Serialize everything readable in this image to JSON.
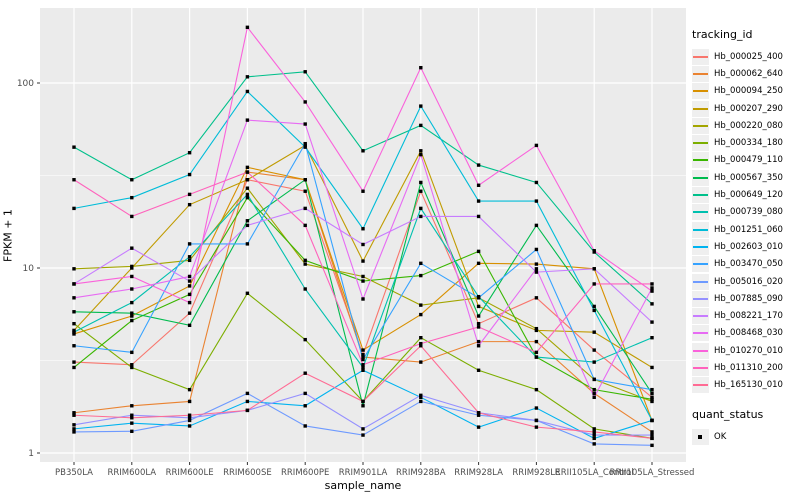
{
  "figure": {
    "background": "#FFFFFF",
    "panel_background": "#EBEBEB",
    "grid_major_color": "#FFFFFF",
    "grid_minor_color": "#F6F6F6",
    "axis_text_color": "#4D4D4D",
    "tick_color": "#333333"
  },
  "chart_data": {
    "type": "line",
    "title": "",
    "xlabel": "sample_name",
    "ylabel": "FPKM + 1",
    "y_scale": "log10",
    "y_ticks": [
      1,
      10,
      100
    ],
    "y_tick_labels": [
      "1",
      "10",
      "100"
    ],
    "y_minor_breaks": [
      3.162,
      31.623
    ],
    "ylim": [
      0.9,
      245
    ],
    "grid": true,
    "legend_position": "right",
    "point_marker": "filled-square",
    "point_color": "#000000",
    "categories": [
      "PB350LA",
      "RRIM600LA",
      "RRIM600LE",
      "RRIM600SE",
      "RRIM600PE",
      "RRIM901LA",
      "RRIM928BA",
      "RRIM928LA",
      "RRIM928LE",
      "RRII105LA_Control",
      "RRII105LA_Stressed"
    ],
    "legend_title": "tracking_id",
    "legend2_title": "quant_status",
    "legend2_items": [
      {
        "label": "OK",
        "marker": "filled-square"
      }
    ],
    "series": [
      {
        "name": "Hb_000025_400",
        "color": "#F8766D",
        "values": [
          3.1,
          3.0,
          5.7,
          30,
          26,
          3.4,
          26,
          5.0,
          6.9,
          3.6,
          2.0
        ]
      },
      {
        "name": "Hb_000062_640",
        "color": "#EA8331",
        "values": [
          1.65,
          1.8,
          1.9,
          33,
          30,
          3.3,
          3.1,
          4.0,
          4.0,
          2.1,
          1.3
        ]
      },
      {
        "name": "Hb_000094_250",
        "color": "#D89000",
        "values": [
          4.4,
          5.5,
          8.0,
          35,
          30,
          3.6,
          5.6,
          10.6,
          10.5,
          9.9,
          1.5
        ]
      },
      {
        "name": "Hb_000207_290",
        "color": "#C09B00",
        "values": [
          4.6,
          10.0,
          22,
          30,
          46,
          10.9,
          43,
          6.2,
          4.6,
          4.5,
          2.9
        ]
      },
      {
        "name": "Hb_000220_080",
        "color": "#A3A500",
        "values": [
          9.9,
          10.2,
          11,
          27,
          10.5,
          9.0,
          6.3,
          6.9,
          4.7,
          2.5,
          1.9
        ]
      },
      {
        "name": "Hb_000334_180",
        "color": "#7CAE00",
        "values": [
          5.0,
          2.9,
          2.2,
          7.3,
          4.1,
          1.9,
          4.2,
          2.8,
          2.2,
          1.35,
          1.2
        ]
      },
      {
        "name": "Hb_000479_110",
        "color": "#39B600",
        "values": [
          2.9,
          5.2,
          7.2,
          24,
          11,
          8.5,
          9.1,
          12.3,
          3.3,
          2.2,
          1.95
        ]
      },
      {
        "name": "Hb_000567_350",
        "color": "#00BB4E",
        "values": [
          5.8,
          5.7,
          4.9,
          18,
          30,
          1.8,
          29,
          5.5,
          17,
          6.2,
          2.1
        ]
      },
      {
        "name": "Hb_000649_120",
        "color": "#00C08B",
        "values": [
          45,
          30,
          42,
          108,
          115,
          43,
          59,
          36,
          29,
          12.2,
          6.4
        ]
      },
      {
        "name": "Hb_000739_080",
        "color": "#00C0AF",
        "values": [
          4.5,
          6.5,
          11.5,
          25,
          7.7,
          2.9,
          21,
          7.0,
          3.3,
          3.1,
          4.2
        ]
      },
      {
        "name": "Hb_001251_060",
        "color": "#00BCD8",
        "values": [
          21,
          24,
          32,
          90,
          45,
          16.3,
          75,
          23,
          23,
          5.9,
          1.5
        ]
      },
      {
        "name": "Hb_002603_010",
        "color": "#00B3F0",
        "values": [
          1.35,
          1.45,
          1.4,
          1.9,
          1.8,
          2.8,
          2.0,
          1.38,
          1.75,
          1.2,
          1.5
        ]
      },
      {
        "name": "Hb_003470_050",
        "color": "#35A2FF",
        "values": [
          3.8,
          3.5,
          13.5,
          13.5,
          47,
          3.2,
          10.6,
          6.9,
          12.6,
          2.5,
          2.2
        ]
      },
      {
        "name": "Hb_005016_020",
        "color": "#6E9AFF",
        "values": [
          1.3,
          1.31,
          1.5,
          2.1,
          1.4,
          1.25,
          1.9,
          1.6,
          1.5,
          1.12,
          1.1
        ]
      },
      {
        "name": "Hb_007885_090",
        "color": "#9590FF",
        "values": [
          1.42,
          1.6,
          1.55,
          1.7,
          2.1,
          1.35,
          2.05,
          1.65,
          1.5,
          1.25,
          1.25
        ]
      },
      {
        "name": "Hb_008221_170",
        "color": "#C77CFF",
        "values": [
          8.2,
          12.8,
          8.5,
          17,
          21,
          13.4,
          19,
          19,
          9.5,
          9.9,
          5.1
        ]
      },
      {
        "name": "Hb_008468_030",
        "color": "#E76BF3",
        "values": [
          6.9,
          7.7,
          9.0,
          63,
          60,
          6.8,
          41,
          3.8,
          9.9,
          2.0,
          7.8
        ]
      },
      {
        "name": "Hb_010270_010",
        "color": "#FA62DB",
        "values": [
          8.2,
          9.0,
          6.5,
          200,
          79,
          26,
          121,
          28,
          46,
          12.4,
          7.5
        ]
      },
      {
        "name": "Hb_011310_200",
        "color": "#FF62BC",
        "values": [
          30,
          19,
          25,
          33,
          17,
          3.0,
          3.9,
          4.8,
          3.5,
          8.2,
          8.2
        ]
      },
      {
        "name": "Hb_165130_010",
        "color": "#FF6B94",
        "values": [
          1.6,
          1.55,
          1.6,
          1.7,
          2.7,
          1.9,
          3.8,
          1.65,
          1.38,
          1.3,
          1.2
        ]
      }
    ]
  }
}
